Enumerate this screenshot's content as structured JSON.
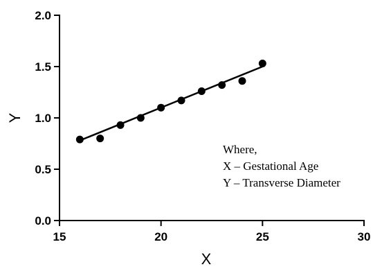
{
  "chart_data": {
    "type": "scatter",
    "title": "",
    "xlabel": "X",
    "ylabel": "Y",
    "xlim": [
      15,
      30
    ],
    "ylim": [
      0.0,
      2.0
    ],
    "x_ticks": [
      "15",
      "20",
      "25",
      "30"
    ],
    "y_ticks": [
      "0.0",
      "0.5",
      "1.0",
      "1.5",
      "2.0"
    ],
    "grid": false,
    "series": [
      {
        "x": [
          16,
          17,
          18,
          19,
          20,
          21,
          22,
          23,
          24,
          25
        ],
        "y": [
          0.79,
          0.8,
          0.93,
          1.0,
          1.1,
          1.17,
          1.26,
          1.32,
          1.36,
          1.53
        ]
      }
    ],
    "fit_line": {
      "x": [
        16,
        25
      ],
      "y": [
        0.78,
        1.5
      ]
    },
    "annotations": [
      "Where,",
      "X – Gestational Age",
      "Y – Transverse Diameter"
    ]
  }
}
